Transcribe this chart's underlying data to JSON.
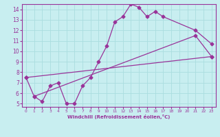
{
  "xlabel": "Windchill (Refroidissement éolien,°C)",
  "bg_color": "#c8eef0",
  "grid_color": "#aadddf",
  "line_color": "#993399",
  "xlim": [
    -0.5,
    23.5
  ],
  "ylim": [
    4.7,
    14.5
  ],
  "xticks": [
    0,
    1,
    2,
    3,
    4,
    5,
    6,
    7,
    8,
    9,
    10,
    11,
    12,
    13,
    14,
    15,
    16,
    17,
    18,
    19,
    20,
    21,
    22,
    23
  ],
  "yticks": [
    5,
    6,
    7,
    8,
    9,
    10,
    11,
    12,
    13,
    14
  ],
  "line1_x": [
    0,
    1,
    2,
    3,
    4,
    5,
    6,
    7,
    8,
    9,
    10,
    11,
    12,
    13,
    14,
    15,
    16,
    17,
    21,
    23
  ],
  "line1_y": [
    7.5,
    5.7,
    5.2,
    6.7,
    7.0,
    5.0,
    5.0,
    6.7,
    7.5,
    9.0,
    10.5,
    12.8,
    13.3,
    14.5,
    14.2,
    13.3,
    13.8,
    13.3,
    12.0,
    10.7
  ],
  "line2_x": [
    0,
    23
  ],
  "line2_y": [
    7.5,
    9.5
  ],
  "line3_x": [
    1,
    21,
    23
  ],
  "line3_y": [
    5.7,
    11.5,
    9.5
  ],
  "marker_size": 2.5,
  "linewidth": 0.9
}
